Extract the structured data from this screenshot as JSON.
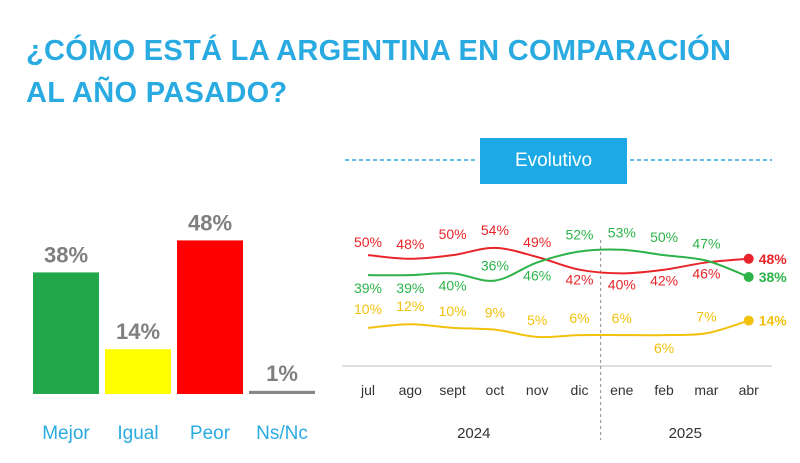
{
  "title": {
    "line1": "¿CÓMO ESTÁ LA ARGENTINA EN COMPARACIÓN",
    "line2": "AL AÑO PASADO?"
  },
  "badge": "Evolutivo",
  "chart_data": [
    {
      "type": "bar",
      "categories": [
        "Mejor",
        "Igual",
        "Peor",
        "Ns/Nc"
      ],
      "values": [
        38,
        14,
        48,
        1
      ],
      "value_labels": [
        "38%",
        "14%",
        "48%",
        "1%"
      ],
      "colors": [
        "#22a84a",
        "#ffff00",
        "#ff0000",
        "#888888"
      ],
      "label_color": "#29abe2",
      "ylim": [
        0,
        50
      ]
    },
    {
      "type": "line",
      "title": "Evolutivo",
      "x": [
        "jul",
        "ago",
        "sept",
        "oct",
        "nov",
        "dic",
        "ene",
        "feb",
        "mar",
        "abr"
      ],
      "groups": [
        {
          "label": "2024",
          "from": 0,
          "to": 5
        },
        {
          "label": "2025",
          "from": 6,
          "to": 9
        }
      ],
      "ylim": [
        0,
        60
      ],
      "series": [
        {
          "name": "Peor",
          "color": "#e8252a",
          "values": [
            50,
            48,
            50,
            54,
            49,
            42,
            40,
            42,
            46,
            48
          ],
          "labels": [
            "50%",
            "48%",
            "50%",
            "54%",
            "49%",
            "42%",
            "40%",
            "42%",
            "46%",
            "48%"
          ]
        },
        {
          "name": "Mejor",
          "color": "#2db34a",
          "values": [
            39,
            39,
            40,
            36,
            46,
            52,
            53,
            50,
            47,
            38
          ],
          "labels": [
            "39%",
            "39%",
            "40%",
            "36%",
            "46%",
            "52%",
            "53%",
            "50%",
            "47%",
            "38%"
          ]
        },
        {
          "name": "Igual",
          "color": "#f2c10e",
          "values": [
            10,
            12,
            10,
            9,
            5,
            6,
            6,
            6,
            7,
            14
          ],
          "labels": [
            "10%",
            "12%",
            "10%",
            "9%",
            "5%",
            "6%",
            "6%",
            "6%",
            "7%",
            "14%"
          ]
        }
      ]
    }
  ]
}
